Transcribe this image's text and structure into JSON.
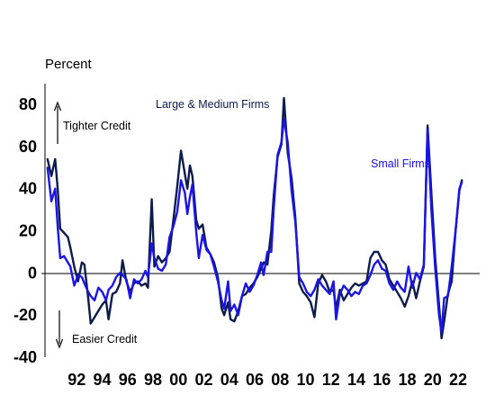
{
  "chart_data": {
    "type": "line",
    "ylabel": "Percent",
    "ylim": [
      -40,
      90
    ],
    "yticks": [
      -40,
      -20,
      0,
      20,
      40,
      60,
      80
    ],
    "xlim": [
      1990.0,
      2024.2
    ],
    "xticks": [
      {
        "label": "92",
        "year": 1992.5
      },
      {
        "label": "94",
        "year": 1994.5
      },
      {
        "label": "96",
        "year": 1996.5
      },
      {
        "label": "98",
        "year": 1998.5
      },
      {
        "label": "00",
        "year": 2000.5
      },
      {
        "label": "02",
        "year": 2002.5
      },
      {
        "label": "04",
        "year": 2004.5
      },
      {
        "label": "06",
        "year": 2006.5
      },
      {
        "label": "08",
        "year": 2008.5
      },
      {
        "label": "10",
        "year": 2010.5
      },
      {
        "label": "12",
        "year": 2012.5
      },
      {
        "label": "14",
        "year": 2014.5
      },
      {
        "label": "16",
        "year": 2016.5
      },
      {
        "label": "18",
        "year": 2018.5
      },
      {
        "label": "20",
        "year": 2020.5
      },
      {
        "label": "22",
        "year": 2022.5
      }
    ],
    "annotations": {
      "tighter": "Tighter Credit",
      "easier": "Easier Credit"
    },
    "series": [
      {
        "name": "Large & Medium Firms",
        "color": "#0d1b4a",
        "points": [
          [
            1990.2,
            54
          ],
          [
            1990.5,
            46
          ],
          [
            1990.8,
            54
          ],
          [
            1991.0,
            40
          ],
          [
            1991.2,
            21
          ],
          [
            1991.5,
            19
          ],
          [
            1991.8,
            17
          ],
          [
            1992.0,
            12
          ],
          [
            1992.3,
            3
          ],
          [
            1992.6,
            -4
          ],
          [
            1992.9,
            5
          ],
          [
            1993.1,
            4
          ],
          [
            1993.4,
            -12
          ],
          [
            1993.6,
            -24
          ],
          [
            1993.9,
            -21
          ],
          [
            1994.2,
            -18
          ],
          [
            1994.5,
            -15
          ],
          [
            1994.8,
            -13
          ],
          [
            1995.0,
            -22
          ],
          [
            1995.3,
            -10
          ],
          [
            1995.6,
            -9
          ],
          [
            1995.9,
            -5
          ],
          [
            1996.1,
            6
          ],
          [
            1996.4,
            -4
          ],
          [
            1996.7,
            -9
          ],
          [
            1997.0,
            -5
          ],
          [
            1997.3,
            -4
          ],
          [
            1997.6,
            -6
          ],
          [
            1997.9,
            -5
          ],
          [
            1998.1,
            -7
          ],
          [
            1998.4,
            35
          ],
          [
            1998.6,
            3
          ],
          [
            1998.9,
            8
          ],
          [
            1999.2,
            5
          ],
          [
            1999.5,
            7
          ],
          [
            1999.8,
            10
          ],
          [
            2000.1,
            25
          ],
          [
            2000.4,
            41
          ],
          [
            2000.7,
            58
          ],
          [
            2001.0,
            47
          ],
          [
            2001.2,
            40
          ],
          [
            2001.4,
            51
          ],
          [
            2001.6,
            46
          ],
          [
            2001.9,
            25
          ],
          [
            2002.1,
            21
          ],
          [
            2002.4,
            23
          ],
          [
            2002.7,
            12
          ],
          [
            2003.0,
            9
          ],
          [
            2003.3,
            5
          ],
          [
            2003.6,
            -2
          ],
          [
            2003.9,
            -17
          ],
          [
            2004.1,
            -20
          ],
          [
            2004.4,
            -14
          ],
          [
            2004.6,
            -22
          ],
          [
            2004.9,
            -23
          ],
          [
            2005.2,
            -18
          ],
          [
            2005.5,
            -11
          ],
          [
            2005.8,
            -10
          ],
          [
            2006.1,
            -7
          ],
          [
            2006.4,
            -5
          ],
          [
            2006.7,
            -2
          ],
          [
            2007.0,
            2
          ],
          [
            2007.2,
            5
          ],
          [
            2007.5,
            4
          ],
          [
            2007.8,
            20
          ],
          [
            2008.0,
            37
          ],
          [
            2008.3,
            55
          ],
          [
            2008.6,
            61
          ],
          [
            2008.8,
            83
          ],
          [
            2009.1,
            57
          ],
          [
            2009.4,
            45
          ],
          [
            2009.7,
            26
          ],
          [
            2010.0,
            -5
          ],
          [
            2010.3,
            -9
          ],
          [
            2010.6,
            -11
          ],
          [
            2010.9,
            -14
          ],
          [
            2011.2,
            -21
          ],
          [
            2011.5,
            -5
          ],
          [
            2011.8,
            -1
          ],
          [
            2012.1,
            -4
          ],
          [
            2012.4,
            -9
          ],
          [
            2012.7,
            -8
          ],
          [
            2012.9,
            -17
          ],
          [
            2013.2,
            -8
          ],
          [
            2013.5,
            -13
          ],
          [
            2013.8,
            -10
          ],
          [
            2014.1,
            -7
          ],
          [
            2014.4,
            -5
          ],
          [
            2014.7,
            -6
          ],
          [
            2015.0,
            -5
          ],
          [
            2015.3,
            -4
          ],
          [
            2015.6,
            7
          ],
          [
            2015.9,
            10
          ],
          [
            2016.2,
            10
          ],
          [
            2016.5,
            6
          ],
          [
            2016.8,
            4
          ],
          [
            2017.1,
            -3
          ],
          [
            2017.4,
            -6
          ],
          [
            2017.7,
            -9
          ],
          [
            2018.0,
            -12
          ],
          [
            2018.3,
            -16
          ],
          [
            2018.6,
            -11
          ],
          [
            2018.9,
            -4
          ],
          [
            2019.2,
            -12
          ],
          [
            2019.5,
            -4
          ],
          [
            2019.8,
            3
          ],
          [
            2020.1,
            70
          ],
          [
            2020.4,
            38
          ],
          [
            2020.7,
            7
          ],
          [
            2021.0,
            -15
          ],
          [
            2021.2,
            -31
          ],
          [
            2021.4,
            -23
          ],
          [
            2021.7,
            -10
          ],
          [
            2022.0,
            -4
          ],
          [
            2022.3,
            20
          ],
          [
            2022.6,
            39
          ],
          [
            2022.8,
            44
          ]
        ]
      },
      {
        "name": "Small Firms",
        "color": "#1a14e8",
        "points": [
          [
            1990.2,
            50
          ],
          [
            1990.5,
            34
          ],
          [
            1990.8,
            40
          ],
          [
            1991.0,
            22
          ],
          [
            1991.2,
            7
          ],
          [
            1991.5,
            8
          ],
          [
            1991.8,
            5
          ],
          [
            1992.0,
            3
          ],
          [
            1992.3,
            -6
          ],
          [
            1992.6,
            -1
          ],
          [
            1992.9,
            -2
          ],
          [
            1993.1,
            -5
          ],
          [
            1993.4,
            -9
          ],
          [
            1993.6,
            -11
          ],
          [
            1993.9,
            -13
          ],
          [
            1994.2,
            -7
          ],
          [
            1994.5,
            -9
          ],
          [
            1994.8,
            -13
          ],
          [
            1995.0,
            -8
          ],
          [
            1995.3,
            -6
          ],
          [
            1995.6,
            -2
          ],
          [
            1995.9,
            0
          ],
          [
            1996.1,
            -1
          ],
          [
            1996.4,
            -3
          ],
          [
            1996.7,
            -12
          ],
          [
            1997.0,
            -3
          ],
          [
            1997.3,
            -5
          ],
          [
            1997.6,
            -3
          ],
          [
            1997.9,
            1
          ],
          [
            1998.1,
            -2
          ],
          [
            1998.4,
            14
          ],
          [
            1998.6,
            7
          ],
          [
            1998.9,
            2
          ],
          [
            1999.2,
            1
          ],
          [
            1999.5,
            4
          ],
          [
            1999.8,
            17
          ],
          [
            2000.1,
            22
          ],
          [
            2000.4,
            29
          ],
          [
            2000.7,
            44
          ],
          [
            2001.0,
            38
          ],
          [
            2001.2,
            28
          ],
          [
            2001.4,
            36
          ],
          [
            2001.6,
            42
          ],
          [
            2001.9,
            19
          ],
          [
            2002.1,
            7
          ],
          [
            2002.4,
            18
          ],
          [
            2002.7,
            11
          ],
          [
            2003.0,
            9
          ],
          [
            2003.3,
            3
          ],
          [
            2003.6,
            -4
          ],
          [
            2003.9,
            -13
          ],
          [
            2004.1,
            -17
          ],
          [
            2004.4,
            -4
          ],
          [
            2004.6,
            -18
          ],
          [
            2004.9,
            -15
          ],
          [
            2005.2,
            -20
          ],
          [
            2005.5,
            -11
          ],
          [
            2005.8,
            -5
          ],
          [
            2006.1,
            -9
          ],
          [
            2006.4,
            -6
          ],
          [
            2006.7,
            -1
          ],
          [
            2007.0,
            5
          ],
          [
            2007.2,
            -1
          ],
          [
            2007.5,
            10
          ],
          [
            2007.8,
            10
          ],
          [
            2008.0,
            31
          ],
          [
            2008.3,
            56
          ],
          [
            2008.6,
            62
          ],
          [
            2008.8,
            73
          ],
          [
            2009.1,
            62
          ],
          [
            2009.4,
            39
          ],
          [
            2009.7,
            24
          ],
          [
            2010.0,
            -2
          ],
          [
            2010.3,
            -5
          ],
          [
            2010.6,
            -9
          ],
          [
            2010.9,
            -11
          ],
          [
            2011.2,
            -8
          ],
          [
            2011.5,
            -3
          ],
          [
            2011.8,
            -6
          ],
          [
            2012.1,
            -8
          ],
          [
            2012.4,
            -10
          ],
          [
            2012.7,
            -4
          ],
          [
            2012.9,
            -22
          ],
          [
            2013.2,
            -10
          ],
          [
            2013.5,
            -6
          ],
          [
            2013.8,
            -8
          ],
          [
            2014.1,
            -11
          ],
          [
            2014.4,
            -9
          ],
          [
            2014.7,
            -10
          ],
          [
            2015.0,
            -6
          ],
          [
            2015.3,
            -5
          ],
          [
            2015.6,
            -1
          ],
          [
            2015.9,
            4
          ],
          [
            2016.2,
            6
          ],
          [
            2016.5,
            2
          ],
          [
            2016.8,
            1
          ],
          [
            2017.1,
            -5
          ],
          [
            2017.4,
            -8
          ],
          [
            2017.7,
            -4
          ],
          [
            2018.0,
            -7
          ],
          [
            2018.3,
            -9
          ],
          [
            2018.6,
            3
          ],
          [
            2018.9,
            -7
          ],
          [
            2019.2,
            0
          ],
          [
            2019.5,
            -3
          ],
          [
            2019.8,
            4
          ],
          [
            2020.1,
            68
          ],
          [
            2020.4,
            30
          ],
          [
            2020.7,
            2
          ],
          [
            2021.0,
            -20
          ],
          [
            2021.2,
            -28
          ],
          [
            2021.4,
            -12
          ],
          [
            2021.7,
            -11
          ],
          [
            2022.0,
            3
          ],
          [
            2022.3,
            20
          ],
          [
            2022.6,
            40
          ],
          [
            2022.8,
            43
          ]
        ]
      }
    ]
  }
}
